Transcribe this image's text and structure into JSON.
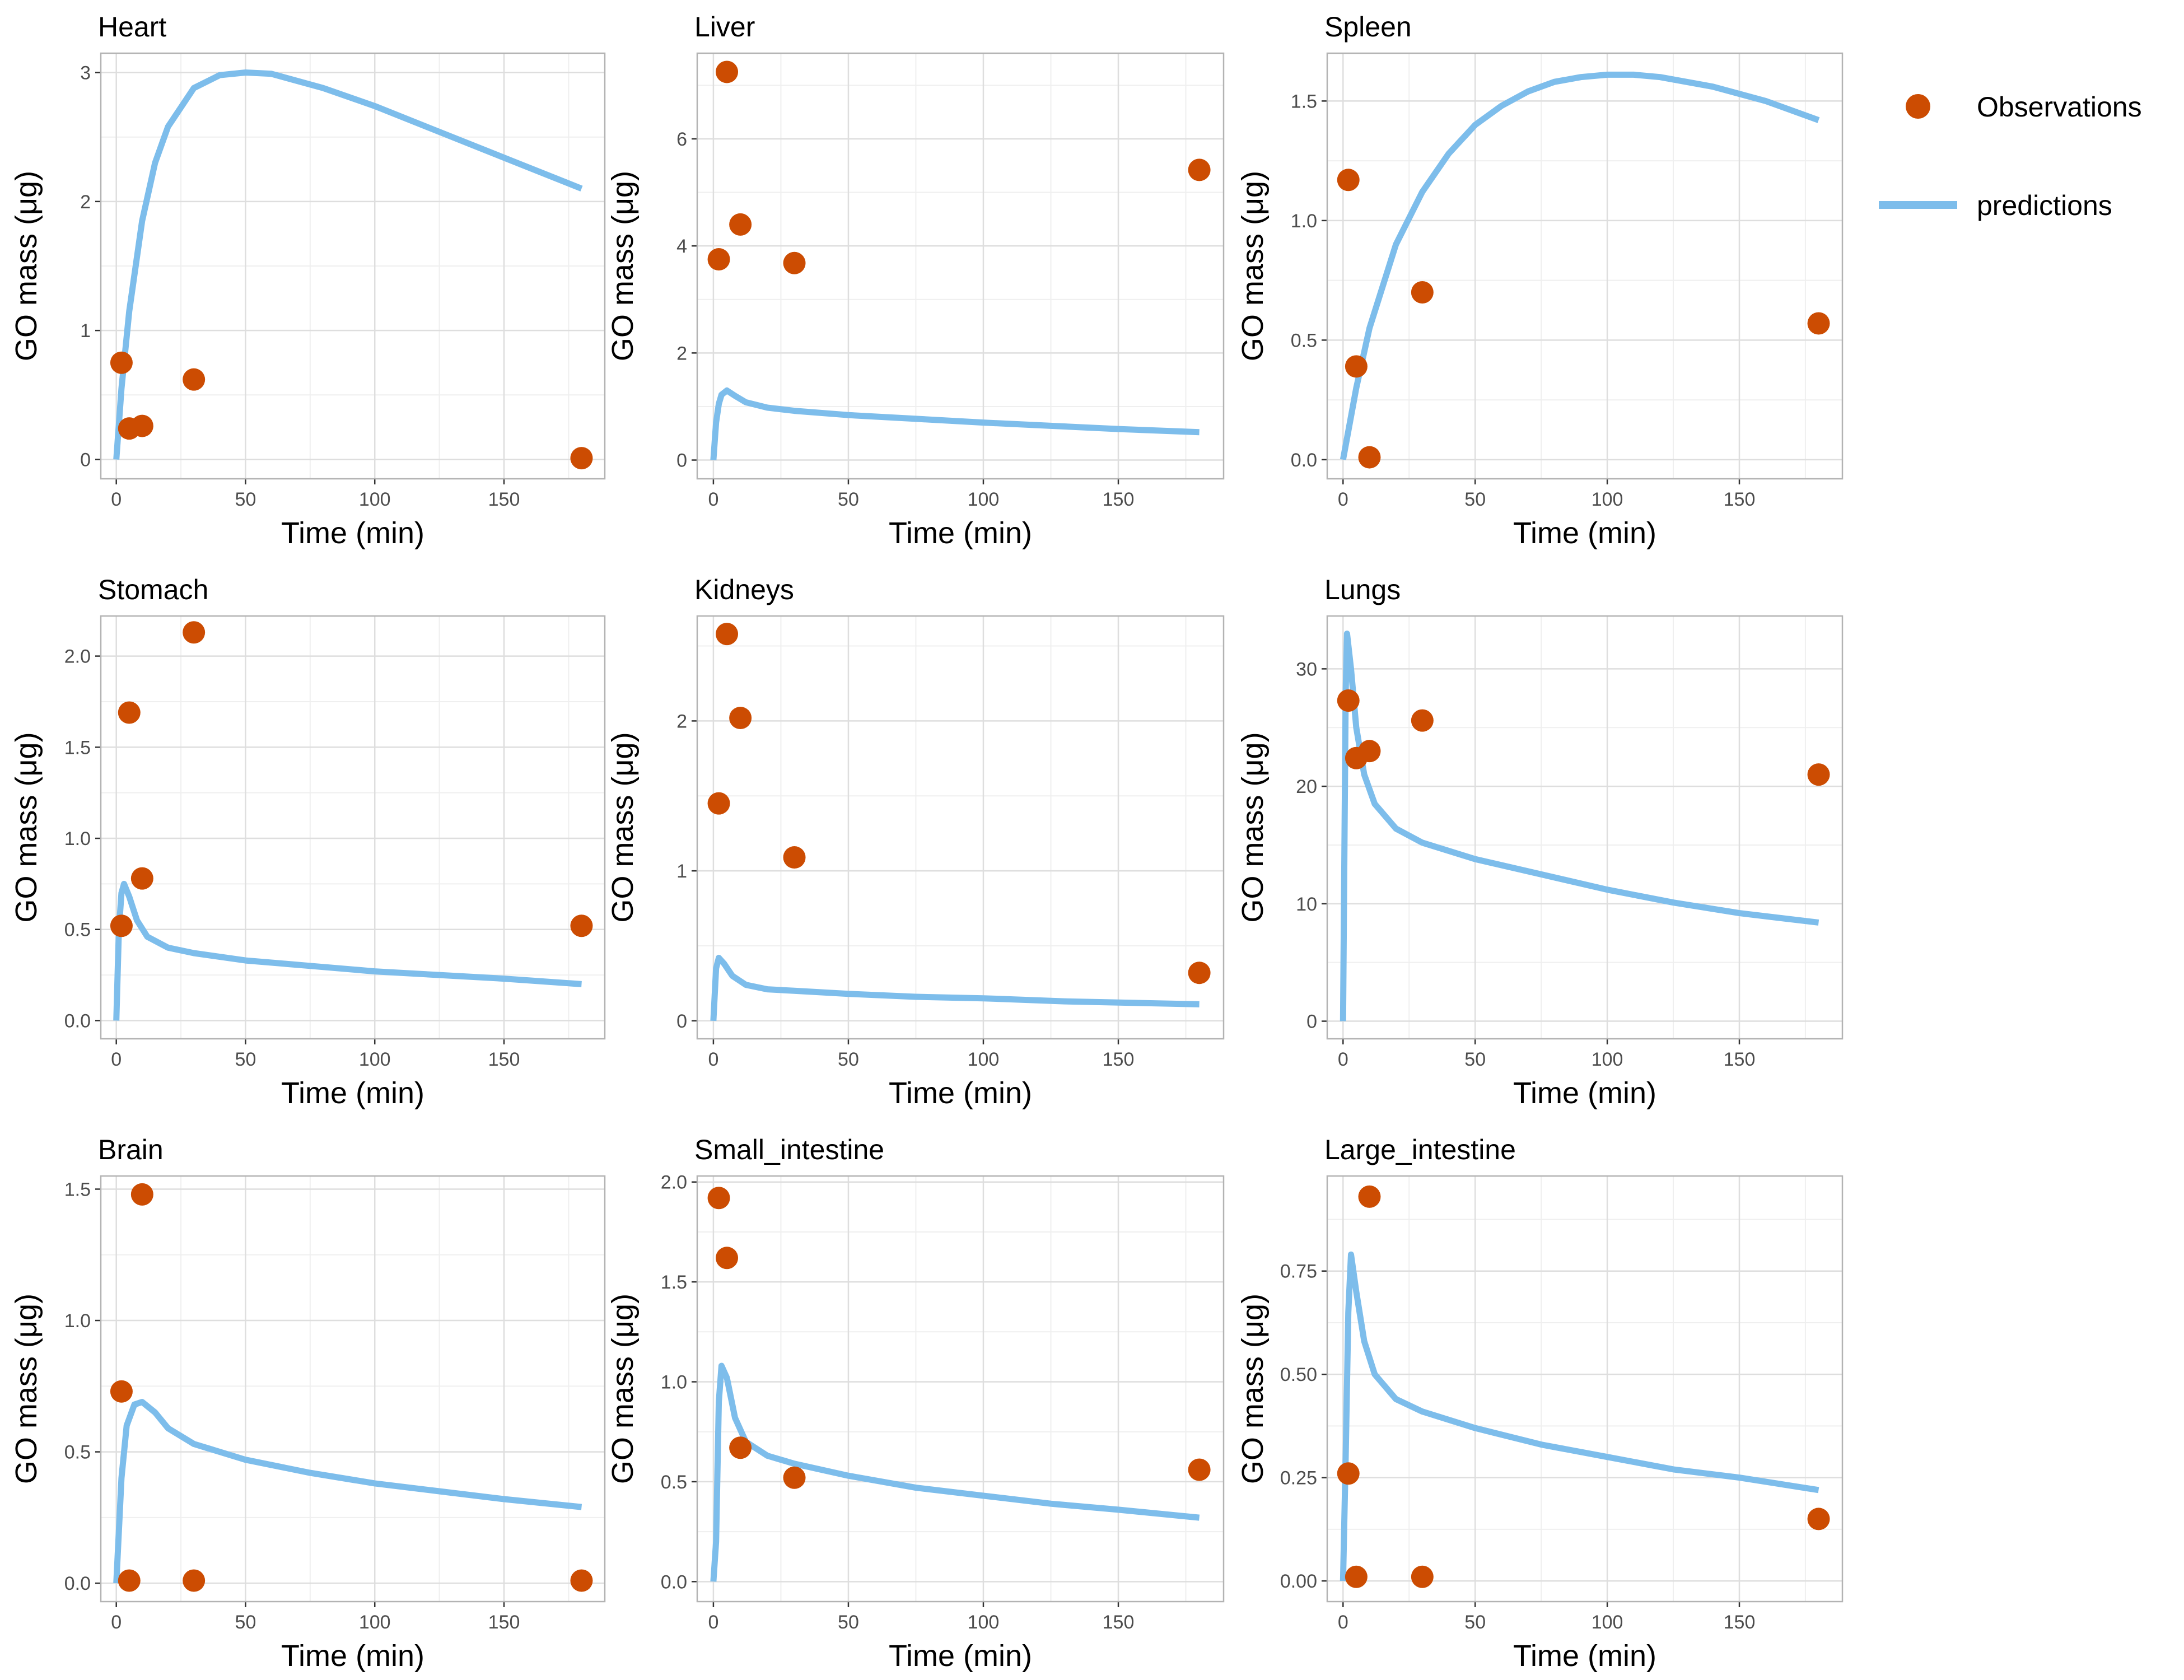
{
  "legend": {
    "observations_label": "Observations",
    "predictions_label": "predictions"
  },
  "colors": {
    "observations": "#CC4C02",
    "predictions": "#7DBDEB",
    "grid_major": "#DEDEDE",
    "grid_minor": "#EFEFEF",
    "panel_border": "#B3B3B3"
  },
  "chart_data": [
    {
      "type": "scatter",
      "title": "Heart",
      "xlabel": "Time (min)",
      "ylabel": "GO mass (μg)",
      "xlim": [
        -6,
        189
      ],
      "ylim": [
        -0.15,
        3.15
      ],
      "xticks": [
        0,
        50,
        100,
        150
      ],
      "yticks": [
        0,
        1,
        2,
        3
      ],
      "ytick_labels": [
        "0",
        "1",
        "2",
        "3"
      ],
      "observations": [
        [
          2,
          0.75
        ],
        [
          5,
          0.24
        ],
        [
          10,
          0.26
        ],
        [
          30,
          0.62
        ],
        [
          180,
          0.01
        ]
      ],
      "prediction": [
        [
          0,
          0
        ],
        [
          2,
          0.55
        ],
        [
          5,
          1.15
        ],
        [
          10,
          1.85
        ],
        [
          15,
          2.3
        ],
        [
          20,
          2.58
        ],
        [
          30,
          2.88
        ],
        [
          40,
          2.98
        ],
        [
          50,
          3.0
        ],
        [
          60,
          2.99
        ],
        [
          80,
          2.88
        ],
        [
          100,
          2.74
        ],
        [
          120,
          2.58
        ],
        [
          140,
          2.42
        ],
        [
          160,
          2.26
        ],
        [
          180,
          2.1
        ]
      ]
    },
    {
      "type": "scatter",
      "title": "Liver",
      "xlabel": "Time (min)",
      "ylabel": "GO mass (μg)",
      "xlim": [
        -6,
        189
      ],
      "ylim": [
        -0.35,
        7.6
      ],
      "xticks": [
        0,
        50,
        100,
        150
      ],
      "yticks": [
        0,
        2,
        4,
        6
      ],
      "ytick_labels": [
        "0",
        "2",
        "4",
        "6"
      ],
      "observations": [
        [
          2,
          3.75
        ],
        [
          5,
          7.25
        ],
        [
          10,
          4.4
        ],
        [
          30,
          3.68
        ],
        [
          180,
          5.42
        ]
      ],
      "prediction": [
        [
          0,
          0
        ],
        [
          1,
          0.7
        ],
        [
          2,
          1.05
        ],
        [
          3,
          1.22
        ],
        [
          5,
          1.3
        ],
        [
          8,
          1.2
        ],
        [
          12,
          1.08
        ],
        [
          20,
          0.98
        ],
        [
          30,
          0.92
        ],
        [
          50,
          0.84
        ],
        [
          75,
          0.77
        ],
        [
          100,
          0.7
        ],
        [
          125,
          0.64
        ],
        [
          150,
          0.58
        ],
        [
          180,
          0.52
        ]
      ]
    },
    {
      "type": "scatter",
      "title": "Spleen",
      "xlabel": "Time (min)",
      "ylabel": "GO mass (μg)",
      "xlim": [
        -6,
        189
      ],
      "ylim": [
        -0.08,
        1.7
      ],
      "xticks": [
        0,
        50,
        100,
        150
      ],
      "yticks": [
        0,
        0.5,
        1.0,
        1.5
      ],
      "ytick_labels": [
        "0.0",
        "0.5",
        "1.0",
        "1.5"
      ],
      "observations": [
        [
          2,
          1.17
        ],
        [
          5,
          0.39
        ],
        [
          10,
          0.01
        ],
        [
          30,
          0.7
        ],
        [
          180,
          0.57
        ]
      ],
      "prediction": [
        [
          0,
          0
        ],
        [
          5,
          0.3
        ],
        [
          10,
          0.55
        ],
        [
          20,
          0.9
        ],
        [
          30,
          1.12
        ],
        [
          40,
          1.28
        ],
        [
          50,
          1.4
        ],
        [
          60,
          1.48
        ],
        [
          70,
          1.54
        ],
        [
          80,
          1.58
        ],
        [
          90,
          1.6
        ],
        [
          100,
          1.61
        ],
        [
          110,
          1.61
        ],
        [
          120,
          1.6
        ],
        [
          140,
          1.56
        ],
        [
          160,
          1.5
        ],
        [
          180,
          1.42
        ]
      ]
    },
    {
      "type": "scatter",
      "title": "Stomach",
      "xlabel": "Time (min)",
      "ylabel": "GO mass (μg)",
      "xlim": [
        -6,
        189
      ],
      "ylim": [
        -0.1,
        2.22
      ],
      "xticks": [
        0,
        50,
        100,
        150
      ],
      "yticks": [
        0,
        0.5,
        1.0,
        1.5,
        2.0
      ],
      "ytick_labels": [
        "0.0",
        "0.5",
        "1.0",
        "1.5",
        "2.0"
      ],
      "observations": [
        [
          2,
          0.52
        ],
        [
          5,
          1.69
        ],
        [
          10,
          0.78
        ],
        [
          30,
          2.13
        ],
        [
          180,
          0.52
        ]
      ],
      "prediction": [
        [
          0,
          0
        ],
        [
          1,
          0.5
        ],
        [
          2,
          0.7
        ],
        [
          3,
          0.75
        ],
        [
          5,
          0.68
        ],
        [
          8,
          0.55
        ],
        [
          12,
          0.46
        ],
        [
          20,
          0.4
        ],
        [
          30,
          0.37
        ],
        [
          50,
          0.33
        ],
        [
          75,
          0.3
        ],
        [
          100,
          0.27
        ],
        [
          125,
          0.25
        ],
        [
          150,
          0.23
        ],
        [
          180,
          0.2
        ]
      ]
    },
    {
      "type": "scatter",
      "title": "Kidneys",
      "xlabel": "Time (min)",
      "ylabel": "GO mass (μg)",
      "xlim": [
        -6,
        189
      ],
      "ylim": [
        -0.12,
        2.7
      ],
      "xticks": [
        0,
        50,
        100,
        150
      ],
      "yticks": [
        0,
        1,
        2
      ],
      "ytick_labels": [
        "0",
        "1",
        "2"
      ],
      "observations": [
        [
          2,
          1.45
        ],
        [
          5,
          2.58
        ],
        [
          10,
          2.02
        ],
        [
          30,
          1.09
        ],
        [
          180,
          0.32
        ]
      ],
      "prediction": [
        [
          0,
          0
        ],
        [
          1,
          0.35
        ],
        [
          2,
          0.42
        ],
        [
          4,
          0.38
        ],
        [
          7,
          0.3
        ],
        [
          12,
          0.24
        ],
        [
          20,
          0.21
        ],
        [
          30,
          0.2
        ],
        [
          50,
          0.18
        ],
        [
          75,
          0.16
        ],
        [
          100,
          0.15
        ],
        [
          130,
          0.13
        ],
        [
          155,
          0.12
        ],
        [
          180,
          0.11
        ]
      ]
    },
    {
      "type": "scatter",
      "title": "Lungs",
      "xlabel": "Time (min)",
      "ylabel": "GO mass (μg)",
      "xlim": [
        -6,
        189
      ],
      "ylim": [
        -1.5,
        34.5
      ],
      "xticks": [
        0,
        50,
        100,
        150
      ],
      "yticks": [
        0,
        10,
        20,
        30
      ],
      "ytick_labels": [
        "0",
        "10",
        "20",
        "30"
      ],
      "observations": [
        [
          2,
          27.3
        ],
        [
          5,
          22.4
        ],
        [
          10,
          23.0
        ],
        [
          30,
          25.6
        ],
        [
          180,
          21.0
        ]
      ],
      "prediction": [
        [
          0,
          0
        ],
        [
          1,
          28
        ],
        [
          1.5,
          33
        ],
        [
          3,
          30
        ],
        [
          5,
          25
        ],
        [
          8,
          21
        ],
        [
          12,
          18.5
        ],
        [
          20,
          16.4
        ],
        [
          30,
          15.2
        ],
        [
          50,
          13.8
        ],
        [
          75,
          12.5
        ],
        [
          100,
          11.2
        ],
        [
          125,
          10.1
        ],
        [
          150,
          9.2
        ],
        [
          180,
          8.4
        ]
      ]
    },
    {
      "type": "scatter",
      "title": "Brain",
      "xlabel": "Time (min)",
      "ylabel": "GO mass (μg)",
      "xlim": [
        -6,
        189
      ],
      "ylim": [
        -0.07,
        1.55
      ],
      "xticks": [
        0,
        50,
        100,
        150
      ],
      "yticks": [
        0,
        0.5,
        1.0,
        1.5
      ],
      "ytick_labels": [
        "0.0",
        "0.5",
        "1.0",
        "1.5"
      ],
      "observations": [
        [
          2,
          0.73
        ],
        [
          5,
          0.01
        ],
        [
          10,
          1.48
        ],
        [
          30,
          0.01
        ],
        [
          180,
          0.01
        ]
      ],
      "prediction": [
        [
          0,
          0
        ],
        [
          2,
          0.4
        ],
        [
          4,
          0.6
        ],
        [
          7,
          0.68
        ],
        [
          10,
          0.69
        ],
        [
          15,
          0.65
        ],
        [
          20,
          0.59
        ],
        [
          30,
          0.53
        ],
        [
          50,
          0.47
        ],
        [
          75,
          0.42
        ],
        [
          100,
          0.38
        ],
        [
          125,
          0.35
        ],
        [
          150,
          0.32
        ],
        [
          180,
          0.29
        ]
      ]
    },
    {
      "type": "scatter",
      "title": "Small_intestine",
      "xlabel": "Time (min)",
      "ylabel": "GO mass (μg)",
      "xlim": [
        -6,
        189
      ],
      "ylim": [
        -0.1,
        2.03
      ],
      "xticks": [
        0,
        50,
        100,
        150
      ],
      "yticks": [
        0,
        0.5,
        1.0,
        1.5,
        2.0
      ],
      "ytick_labels": [
        "0.0",
        "0.5",
        "1.0",
        "1.5",
        "2.0"
      ],
      "observations": [
        [
          2,
          1.92
        ],
        [
          5,
          1.62
        ],
        [
          10,
          0.67
        ],
        [
          30,
          0.52
        ],
        [
          180,
          0.56
        ]
      ],
      "prediction": [
        [
          0,
          0
        ],
        [
          1,
          0.2
        ],
        [
          2,
          0.9
        ],
        [
          3,
          1.08
        ],
        [
          5,
          1.02
        ],
        [
          8,
          0.82
        ],
        [
          12,
          0.7
        ],
        [
          20,
          0.63
        ],
        [
          30,
          0.59
        ],
        [
          50,
          0.53
        ],
        [
          75,
          0.47
        ],
        [
          100,
          0.43
        ],
        [
          125,
          0.39
        ],
        [
          150,
          0.36
        ],
        [
          180,
          0.32
        ]
      ]
    },
    {
      "type": "scatter",
      "title": "Large_intestine",
      "xlabel": "Time (min)",
      "ylabel": "GO mass (μg)",
      "xlim": [
        -6,
        189
      ],
      "ylim": [
        -0.05,
        0.98
      ],
      "xticks": [
        0,
        50,
        100,
        150
      ],
      "yticks": [
        0,
        0.25,
        0.5,
        0.75
      ],
      "ytick_labels": [
        "0.00",
        "0.25",
        "0.50",
        "0.75"
      ],
      "observations": [
        [
          2,
          0.26
        ],
        [
          5,
          0.01
        ],
        [
          10,
          0.93
        ],
        [
          30,
          0.01
        ],
        [
          180,
          0.15
        ]
      ],
      "prediction": [
        [
          0,
          0
        ],
        [
          1,
          0.3
        ],
        [
          2,
          0.65
        ],
        [
          3,
          0.79
        ],
        [
          5,
          0.7
        ],
        [
          8,
          0.58
        ],
        [
          12,
          0.5
        ],
        [
          20,
          0.44
        ],
        [
          30,
          0.41
        ],
        [
          50,
          0.37
        ],
        [
          75,
          0.33
        ],
        [
          100,
          0.3
        ],
        [
          125,
          0.27
        ],
        [
          150,
          0.25
        ],
        [
          180,
          0.22
        ]
      ]
    }
  ]
}
